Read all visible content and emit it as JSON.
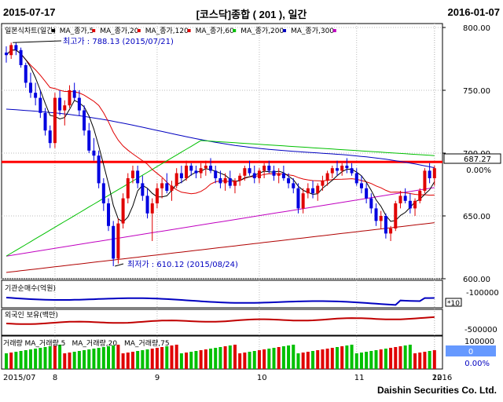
{
  "header": {
    "start_date": "2015-07-17",
    "title": "[코스닥]종합 ( 201 ), 일간",
    "end_date": "2016-01-07"
  },
  "footer": {
    "brand": "Daishin Securities Co. Ltd."
  },
  "chart_data": {
    "type": "candlestick",
    "legend": [
      {
        "label": "일본식차트(일간)",
        "color": "#000000"
      },
      {
        "label": "MA_종가,5",
        "color": "#e00000"
      },
      {
        "label": "MA_종가,20",
        "color": "#e00000"
      },
      {
        "label": "MA_종가,120",
        "color": "#e00000"
      },
      {
        "label": "MA_종가,60",
        "color": "#00c000"
      },
      {
        "label": "MA_종가,200",
        "color": "#0000c0"
      },
      {
        "label": "MA_종가,300",
        "color": "#c000c0"
      }
    ],
    "annotations": {
      "high": "최고가 : 788.13 (2015/07/21)",
      "low": "최저가 : 610.12 (2015/08/24)"
    },
    "price_axis": {
      "ticks": [
        "800.00",
        "750.00",
        "700.00",
        "650.00",
        "600.00"
      ],
      "min": 600,
      "max": 800
    },
    "last_price": {
      "value": "687.27",
      "change": "0.00%"
    },
    "horizontal_line": 693,
    "x_axis_labels": [
      "2015/07",
      "8",
      "9",
      "10",
      "11",
      "12",
      "2016"
    ],
    "ohlc": [
      [
        780,
        785,
        772,
        778
      ],
      [
        778,
        788,
        775,
        786
      ],
      [
        786,
        788,
        778,
        782
      ],
      [
        782,
        784,
        768,
        770
      ],
      [
        770,
        772,
        752,
        756
      ],
      [
        756,
        764,
        744,
        748
      ],
      [
        748,
        756,
        738,
        744
      ],
      [
        744,
        750,
        728,
        732
      ],
      [
        732,
        736,
        714,
        718
      ],
      [
        718,
        722,
        704,
        708
      ],
      [
        708,
        748,
        704,
        744
      ],
      [
        744,
        750,
        730,
        734
      ],
      [
        734,
        742,
        722,
        738
      ],
      [
        738,
        754,
        736,
        750
      ],
      [
        750,
        756,
        742,
        744
      ],
      [
        744,
        750,
        730,
        734
      ],
      [
        734,
        738,
        714,
        718
      ],
      [
        718,
        724,
        700,
        702
      ],
      [
        702,
        712,
        694,
        698
      ],
      [
        698,
        702,
        672,
        676
      ],
      [
        676,
        680,
        654,
        660
      ],
      [
        660,
        664,
        638,
        642
      ],
      [
        642,
        646,
        610,
        616
      ],
      [
        616,
        648,
        612,
        644
      ],
      [
        644,
        668,
        640,
        664
      ],
      [
        664,
        684,
        660,
        680
      ],
      [
        680,
        690,
        676,
        686
      ],
      [
        686,
        690,
        672,
        676
      ],
      [
        676,
        682,
        662,
        666
      ],
      [
        666,
        672,
        648,
        652
      ],
      [
        652,
        664,
        630,
        660
      ],
      [
        660,
        676,
        656,
        672
      ],
      [
        672,
        680,
        664,
        676
      ],
      [
        676,
        684,
        668,
        670
      ],
      [
        670,
        678,
        662,
        674
      ],
      [
        674,
        688,
        672,
        684
      ],
      [
        684,
        690,
        676,
        680
      ],
      [
        680,
        694,
        678,
        690
      ],
      [
        690,
        692,
        682,
        686
      ],
      [
        686,
        690,
        680,
        684
      ],
      [
        684,
        692,
        680,
        688
      ],
      [
        688,
        694,
        682,
        690
      ],
      [
        690,
        696,
        684,
        686
      ],
      [
        686,
        690,
        676,
        680
      ],
      [
        680,
        686,
        672,
        676
      ],
      [
        676,
        684,
        670,
        680
      ],
      [
        680,
        686,
        672,
        674
      ],
      [
        674,
        680,
        668,
        678
      ],
      [
        678,
        684,
        674,
        682
      ],
      [
        682,
        690,
        678,
        688
      ],
      [
        688,
        694,
        682,
        684
      ],
      [
        684,
        690,
        676,
        680
      ],
      [
        680,
        688,
        676,
        686
      ],
      [
        686,
        692,
        680,
        690
      ],
      [
        690,
        694,
        684,
        686
      ],
      [
        686,
        690,
        678,
        682
      ],
      [
        682,
        688,
        676,
        684
      ],
      [
        684,
        690,
        678,
        680
      ],
      [
        680,
        684,
        672,
        676
      ],
      [
        676,
        680,
        668,
        672
      ],
      [
        672,
        676,
        652,
        656
      ],
      [
        656,
        672,
        652,
        668
      ],
      [
        668,
        676,
        664,
        672
      ],
      [
        672,
        678,
        664,
        668
      ],
      [
        668,
        676,
        662,
        674
      ],
      [
        674,
        682,
        670,
        678
      ],
      [
        678,
        686,
        674,
        684
      ],
      [
        684,
        690,
        680,
        688
      ],
      [
        688,
        694,
        682,
        686
      ],
      [
        686,
        692,
        682,
        690
      ],
      [
        690,
        696,
        684,
        688
      ],
      [
        688,
        692,
        682,
        684
      ],
      [
        684,
        688,
        674,
        676
      ],
      [
        676,
        682,
        668,
        672
      ],
      [
        672,
        676,
        660,
        664
      ],
      [
        664,
        668,
        652,
        656
      ],
      [
        656,
        660,
        642,
        646
      ],
      [
        646,
        654,
        640,
        650
      ],
      [
        650,
        652,
        632,
        636
      ],
      [
        636,
        642,
        630,
        640
      ],
      [
        640,
        662,
        638,
        660
      ],
      [
        660,
        670,
        656,
        666
      ],
      [
        666,
        672,
        660,
        662
      ],
      [
        662,
        668,
        652,
        656
      ],
      [
        656,
        664,
        650,
        662
      ],
      [
        662,
        672,
        660,
        670
      ],
      [
        670,
        688,
        668,
        686
      ],
      [
        686,
        692,
        676,
        680
      ],
      [
        680,
        690,
        674,
        688
      ]
    ],
    "indicators": {
      "foreign_net": {
        "label": "기관순매수(억원)",
        "scale": "-100000",
        "unit": "*10"
      },
      "foreign_holding": {
        "label": "외국인 보유(백만)",
        "scale": "-500000"
      },
      "volume": {
        "labels": [
          "거래량",
          "MA_거래량,5",
          "MA_거래량,20",
          "MA_거래량,75"
        ],
        "scale_top": "100000",
        "box_value": "0",
        "box_pct": "0.00%"
      }
    }
  }
}
